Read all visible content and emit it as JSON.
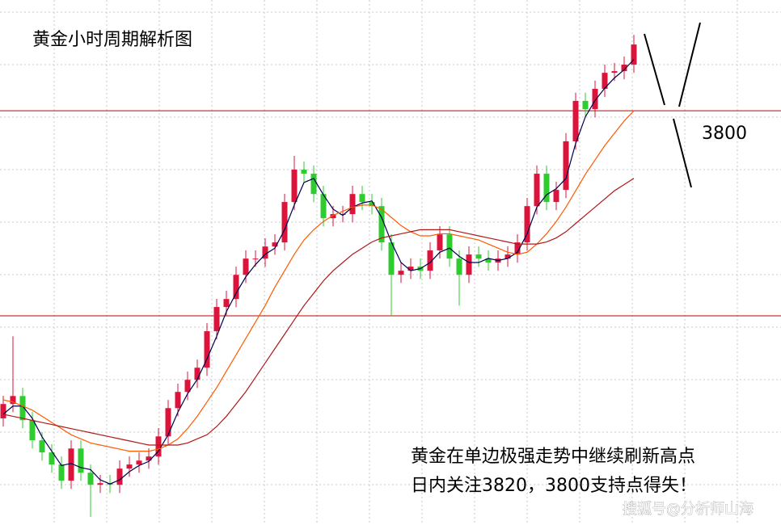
{
  "chart_data": {
    "type": "candlestick",
    "title": "黄金小时周期解析图",
    "annotations": [
      "黄金在单边极强走势中继续刷新高点",
      "日内关注3820，3800支持点得失！"
    ],
    "watermark": "搜狐号@分析师山海",
    "ylim": [
      3598,
      3854
    ],
    "up_color": "#dc143c",
    "down_color": "#2fcc2f",
    "hlines": [
      {
        "value": 3800,
        "label": "3800"
      },
      3700
    ],
    "hline_color": "#c00000",
    "open": [
      3650.0,
      3657.0,
      3660.9,
      3649.1,
      3639.3,
      3633.4,
      3627.5,
      3619.6,
      3635.3,
      3623.5,
      3617.6,
      3618.4,
      3617.6,
      3625.5,
      3627.5,
      3629.4,
      3631.4,
      3641.2,
      3655.0,
      3662.9,
      3668.8,
      3674.7,
      3692.5,
      3704.3,
      3708.2,
      3720.0,
      3727.9,
      3727.9,
      3733.8,
      3735.8,
      3755.5,
      3771.3,
      3769.3,
      3759.4,
      3747.6,
      3749.6,
      3749.6,
      3759.4,
      3755.5,
      3753.5,
      3735.8,
      3720.0,
      3722.0,
      3724.0,
      3722.0,
      3731.9,
      3739.7,
      3727.9,
      3720.0,
      3729.9,
      3727.9,
      3726.0,
      3727.9,
      3729.9,
      3735.8,
      3753.5,
      3769.3,
      3755.5,
      3761.4,
      3785.1,
      3804.8,
      3800.8,
      3810.7,
      3818.5,
      3819.3,
      3822.5
    ],
    "high": [
      3661,
      3690,
      3664.9,
      3653.1,
      3643.3,
      3637.4,
      3631.5,
      3639.3,
      3639.3,
      3627.5,
      3622.4,
      3622.4,
      3629.5,
      3631.5,
      3633.4,
      3635.4,
      3645.2,
      3659.0,
      3666.9,
      3672.8,
      3678.7,
      3696.5,
      3708.3,
      3712.2,
      3724.0,
      3731.9,
      3731.9,
      3737.8,
      3739.8,
      3759.5,
      3778.0,
      3775.3,
      3773.3,
      3763.4,
      3753.6,
      3753.6,
      3763.4,
      3763.4,
      3759.5,
      3757.5,
      3739.8,
      3726.0,
      3728.0,
      3728.0,
      3735.9,
      3743.7,
      3743.7,
      3731.9,
      3733.9,
      3733.9,
      3731.9,
      3731.9,
      3733.9,
      3739.8,
      3757.5,
      3773.3,
      3773.3,
      3765.4,
      3789.1,
      3808.8,
      3808.8,
      3814.7,
      3822.5,
      3823.3,
      3826.5,
      3837.0
    ],
    "low": [
      3646.0,
      3653.0,
      3645.1,
      3635.3,
      3629.4,
      3623.5,
      3615.6,
      3615.6,
      3619.5,
      3602.0,
      3613.6,
      3613.6,
      3613.6,
      3621.5,
      3623.5,
      3625.4,
      3627.4,
      3637.2,
      3651.0,
      3658.9,
      3664.8,
      3670.7,
      3688.5,
      3700.3,
      3704.2,
      3716.0,
      3723.9,
      3723.9,
      3729.8,
      3731.8,
      3751.5,
      3765.3,
      3755.4,
      3743.6,
      3743.6,
      3745.6,
      3745.6,
      3751.5,
      3749.5,
      3731.8,
      3700.0,
      3716.0,
      3718.0,
      3718.0,
      3718.0,
      3727.9,
      3723.9,
      3705.0,
      3716.0,
      3723.9,
      3722.0,
      3722.0,
      3723.9,
      3725.9,
      3731.8,
      3749.5,
      3751.5,
      3751.5,
      3757.4,
      3781.1,
      3796.8,
      3796.8,
      3806.7,
      3814.5,
      3815.3,
      3818.5
    ],
    "close": [
      3657.0,
      3660.9,
      3649.1,
      3639.3,
      3633.4,
      3627.5,
      3619.6,
      3635.3,
      3623.5,
      3617.6,
      3618.4,
      3617.6,
      3625.5,
      3627.5,
      3629.4,
      3631.4,
      3641.2,
      3655.0,
      3662.9,
      3668.8,
      3674.7,
      3692.5,
      3704.3,
      3708.2,
      3720.0,
      3727.9,
      3727.9,
      3733.8,
      3735.8,
      3755.5,
      3771.3,
      3769.3,
      3759.4,
      3747.6,
      3749.6,
      3749.6,
      3759.4,
      3755.5,
      3753.5,
      3735.8,
      3720.0,
      3722.0,
      3724.0,
      3722.0,
      3731.9,
      3739.7,
      3727.9,
      3720.0,
      3729.9,
      3727.9,
      3726.0,
      3727.9,
      3729.9,
      3735.8,
      3753.5,
      3769.3,
      3755.5,
      3761.4,
      3785.1,
      3804.8,
      3800.8,
      3810.7,
      3818.5,
      3819.3,
      3822.5,
      3832.3
    ],
    "lines": [
      {
        "color": "#000050",
        "values": [
          3652,
          3656,
          3656,
          3650,
          3641,
          3634,
          3627,
          3628,
          3626,
          3625,
          3620,
          3618,
          3620,
          3624,
          3627,
          3629,
          3634,
          3642,
          3653,
          3662,
          3669,
          3679,
          3690,
          3702,
          3711,
          3719,
          3725,
          3730,
          3733,
          3742,
          3754,
          3765,
          3767,
          3759,
          3752,
          3749,
          3753,
          3755,
          3756,
          3748,
          3736,
          3726,
          3722,
          3723,
          3726,
          3731,
          3733,
          3729,
          3726,
          3726,
          3728,
          3727,
          3728,
          3731,
          3740,
          3753,
          3759,
          3762,
          3767,
          3784,
          3797,
          3805,
          3811,
          3816,
          3820,
          3825
        ]
      },
      {
        "color": "#ff5a00",
        "values": [
          3659,
          3658,
          3656,
          3654,
          3651,
          3648,
          3645,
          3642,
          3640,
          3638,
          3637,
          3636,
          3635,
          3634,
          3634,
          3634,
          3635,
          3637,
          3640,
          3645,
          3651,
          3658,
          3665,
          3673,
          3681,
          3689,
          3697,
          3705,
          3714,
          3722,
          3730,
          3737,
          3742,
          3746,
          3749,
          3751,
          3753,
          3754,
          3754,
          3752,
          3748,
          3744,
          3741,
          3739,
          3739,
          3740,
          3740,
          3739,
          3738,
          3737,
          3735,
          3733,
          3731,
          3730,
          3731,
          3735,
          3740,
          3746,
          3753,
          3761,
          3769,
          3776,
          3783,
          3789,
          3795,
          3800
        ]
      },
      {
        "color": "#b01818",
        "values": [
          3652,
          3651,
          3650,
          3649,
          3648,
          3647,
          3646,
          3645,
          3644,
          3643,
          3642,
          3641,
          3640,
          3639,
          3638,
          3637,
          3637,
          3637,
          3637,
          3638,
          3640,
          3642,
          3646,
          3651,
          3657,
          3663,
          3670,
          3677,
          3684,
          3691,
          3698,
          3705,
          3711,
          3717,
          3722,
          3726,
          3730,
          3733,
          3736,
          3738,
          3739,
          3740,
          3741,
          3742,
          3742,
          3742,
          3742,
          3741,
          3740,
          3739,
          3738,
          3737,
          3736,
          3735,
          3735,
          3735,
          3736,
          3738,
          3741,
          3745,
          3749,
          3753,
          3757,
          3761,
          3764,
          3767
        ]
      }
    ]
  }
}
